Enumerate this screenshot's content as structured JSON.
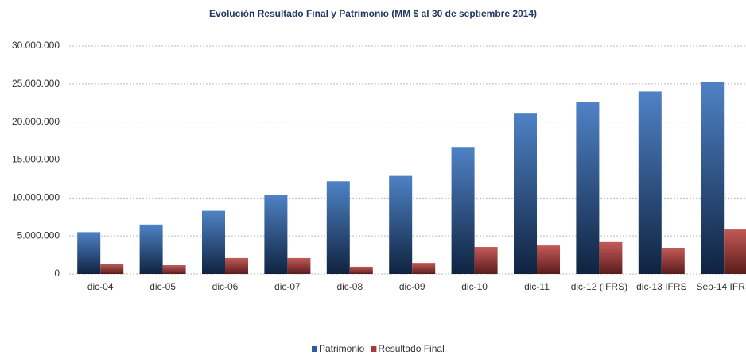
{
  "chart_data": {
    "type": "bar",
    "title": "Evolución Resultado Final y Patrimonio (MM $ al 30 de septiembre 2014)",
    "categories": [
      "dic-04",
      "dic-05",
      "dic-06",
      "dic-07",
      "dic-08",
      "dic-09",
      "dic-10",
      "dic-11",
      "dic-12 (IFRS)",
      "dic-13 IFRS",
      "Sep-14 IFRS"
    ],
    "series": [
      {
        "name": "Patrimonio",
        "color": "#2e5c9e",
        "values": [
          5500000,
          6500000,
          8300000,
          10400000,
          12200000,
          13000000,
          16700000,
          21200000,
          22600000,
          24000000,
          25300000
        ]
      },
      {
        "name": "Resultado Final",
        "color": "#a33b3b",
        "values": [
          1350000,
          1150000,
          2100000,
          2100000,
          950000,
          1450000,
          3550000,
          3750000,
          4200000,
          3450000,
          5950000
        ]
      }
    ],
    "ylim": [
      0,
      30000000
    ],
    "yticks": [
      {
        "value": 0,
        "label": "0"
      },
      {
        "value": 5000000,
        "label": "5.000.000"
      },
      {
        "value": 10000000,
        "label": "10.000.000"
      },
      {
        "value": 15000000,
        "label": "15.000.000"
      },
      {
        "value": 20000000,
        "label": "20.000.000"
      },
      {
        "value": 25000000,
        "label": "25.000.000"
      },
      {
        "value": 30000000,
        "label": "30.000.000"
      }
    ],
    "grid": true,
    "legend": "bottom"
  }
}
